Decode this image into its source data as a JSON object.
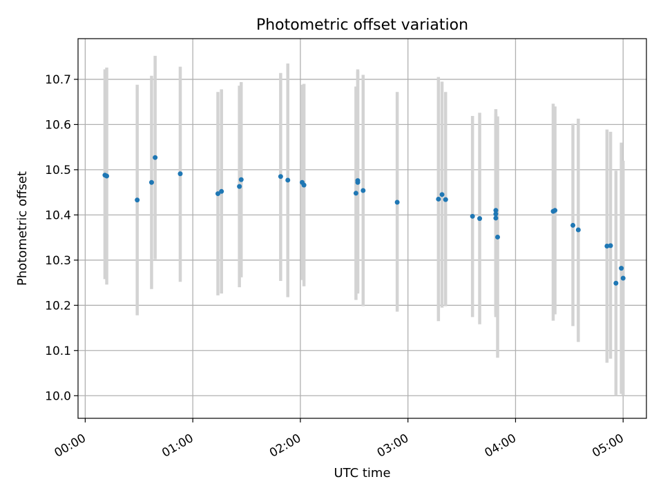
{
  "chart_data": {
    "type": "scatter",
    "title": "Photometric offset variation",
    "xlabel": "UTC time",
    "ylabel": "Photometric offset",
    "xlim": [
      "23:56",
      "05:13"
    ],
    "ylim": [
      9.95,
      10.79
    ],
    "x_ticks": [
      "00:00",
      "01:00",
      "02:00",
      "03:00",
      "04:00",
      "05:00"
    ],
    "y_ticks": [
      "10.0",
      "10.1",
      "10.2",
      "10.3",
      "10.4",
      "10.5",
      "10.6",
      "10.7"
    ],
    "grid": true,
    "marker_color": "#1f77b4",
    "errorbar_color": "#d3d3d3",
    "points": [
      {
        "x": "00:11",
        "y": 10.488,
        "low": 10.258,
        "high": 10.722
      },
      {
        "x": "00:12",
        "y": 10.486,
        "low": 10.246,
        "high": 10.726
      },
      {
        "x": "00:29",
        "y": 10.433,
        "low": 10.178,
        "high": 10.688
      },
      {
        "x": "00:37",
        "y": 10.472,
        "low": 10.236,
        "high": 10.708
      },
      {
        "x": "00:39",
        "y": 10.527,
        "low": 10.302,
        "high": 10.752
      },
      {
        "x": "00:53",
        "y": 10.491,
        "low": 10.252,
        "high": 10.728
      },
      {
        "x": "01:14",
        "y": 10.447,
        "low": 10.222,
        "high": 10.672
      },
      {
        "x": "01:16",
        "y": 10.452,
        "low": 10.226,
        "high": 10.678
      },
      {
        "x": "01:26",
        "y": 10.463,
        "low": 10.24,
        "high": 10.686
      },
      {
        "x": "01:27",
        "y": 10.478,
        "low": 10.262,
        "high": 10.694
      },
      {
        "x": "01:49",
        "y": 10.485,
        "low": 10.254,
        "high": 10.714
      },
      {
        "x": "01:53",
        "y": 10.477,
        "low": 10.218,
        "high": 10.735
      },
      {
        "x": "02:01",
        "y": 10.472,
        "low": 10.256,
        "high": 10.688
      },
      {
        "x": "02:02",
        "y": 10.466,
        "low": 10.242,
        "high": 10.69
      },
      {
        "x": "02:31",
        "y": 10.448,
        "low": 10.212,
        "high": 10.684
      },
      {
        "x": "02:32",
        "y": 10.476,
        "low": 10.23,
        "high": 10.722
      },
      {
        "x": "02:32",
        "y": 10.472,
        "low": 10.226,
        "high": 10.718
      },
      {
        "x": "02:35",
        "y": 10.454,
        "low": 10.198,
        "high": 10.71
      },
      {
        "x": "02:54",
        "y": 10.428,
        "low": 10.186,
        "high": 10.672
      },
      {
        "x": "03:17",
        "y": 10.435,
        "low": 10.165,
        "high": 10.705
      },
      {
        "x": "03:19",
        "y": 10.445,
        "low": 10.195,
        "high": 10.695
      },
      {
        "x": "03:21",
        "y": 10.434,
        "low": 10.198,
        "high": 10.672
      },
      {
        "x": "03:36",
        "y": 10.397,
        "low": 10.174,
        "high": 10.619
      },
      {
        "x": "03:40",
        "y": 10.392,
        "low": 10.158,
        "high": 10.626
      },
      {
        "x": "03:49",
        "y": 10.41,
        "low": 10.186,
        "high": 10.634
      },
      {
        "x": "03:49",
        "y": 10.402,
        "low": 10.18,
        "high": 10.624
      },
      {
        "x": "03:49",
        "y": 10.393,
        "low": 10.174,
        "high": 10.612
      },
      {
        "x": "03:50",
        "y": 10.351,
        "low": 10.084,
        "high": 10.618
      },
      {
        "x": "04:21",
        "y": 10.408,
        "low": 10.166,
        "high": 10.646
      },
      {
        "x": "04:22",
        "y": 10.41,
        "low": 10.18,
        "high": 10.64
      },
      {
        "x": "04:32",
        "y": 10.377,
        "low": 10.154,
        "high": 10.602
      },
      {
        "x": "04:35",
        "y": 10.367,
        "low": 10.119,
        "high": 10.613
      },
      {
        "x": "04:51",
        "y": 10.331,
        "low": 10.073,
        "high": 10.589
      },
      {
        "x": "04:53",
        "y": 10.332,
        "low": 10.082,
        "high": 10.584
      },
      {
        "x": "04:56",
        "y": 10.249,
        "low": 10.0,
        "high": 10.498
      },
      {
        "x": "04:59",
        "y": 10.282,
        "low": 10.004,
        "high": 10.56
      },
      {
        "x": "05:00",
        "y": 10.26,
        "low": 10.0,
        "high": 10.52
      }
    ]
  }
}
